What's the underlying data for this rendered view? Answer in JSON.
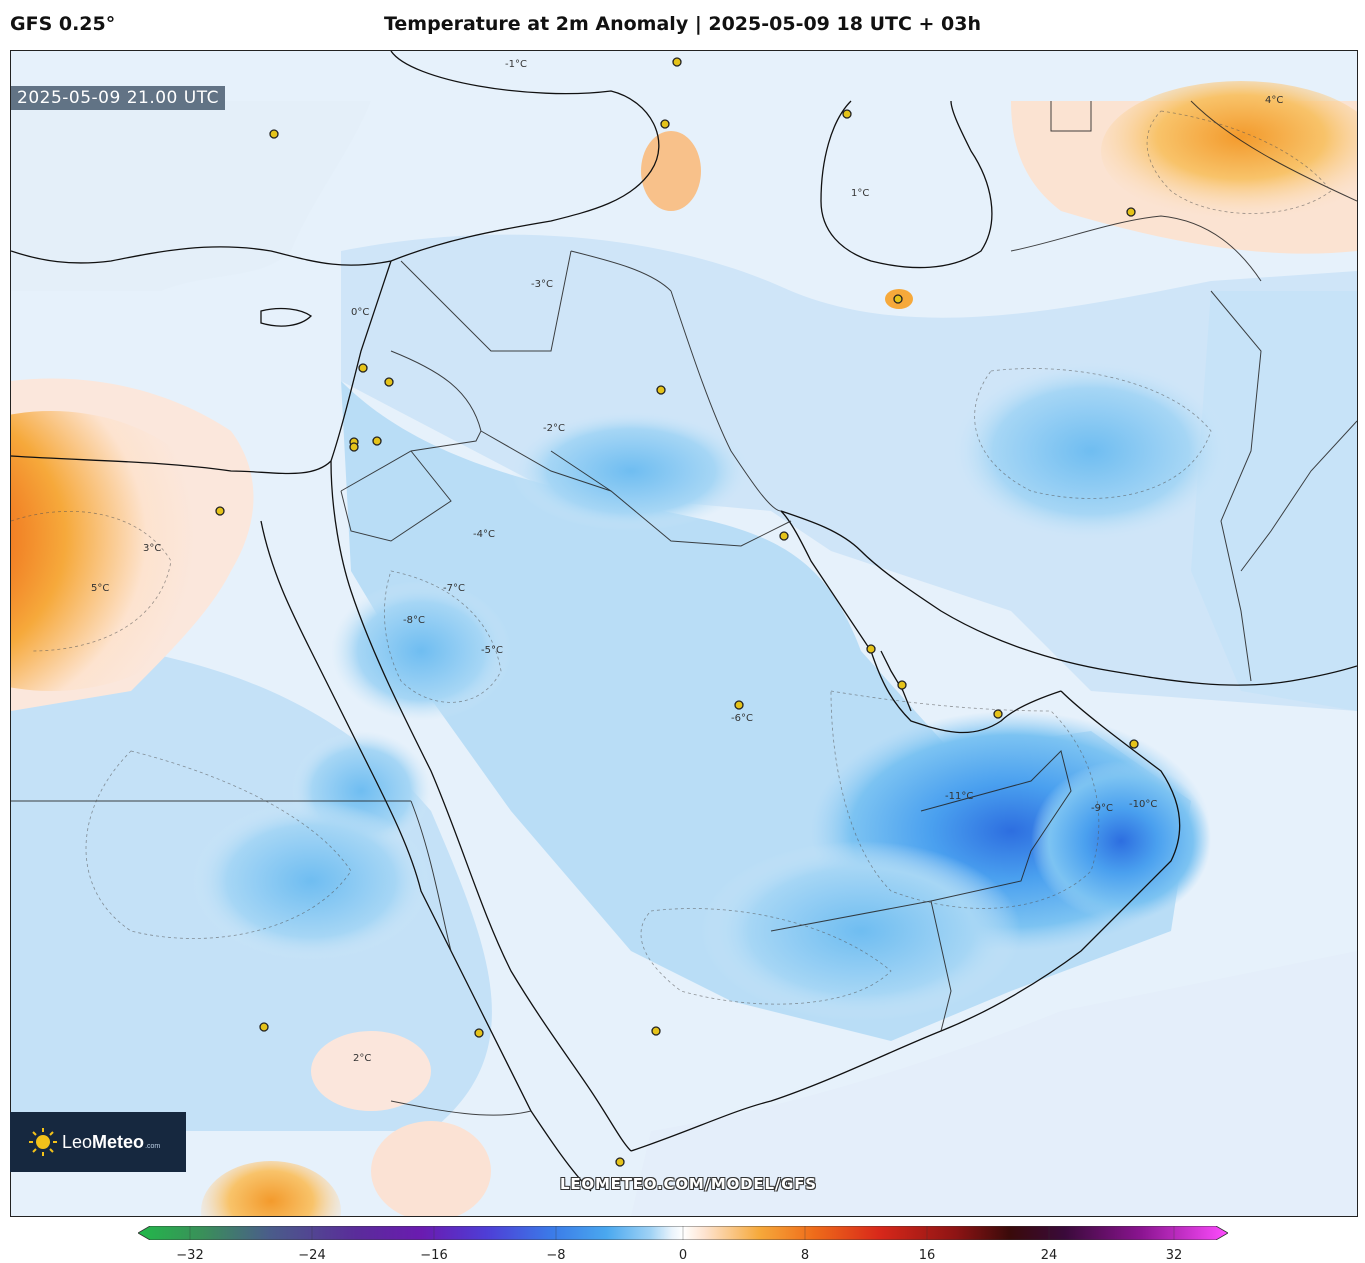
{
  "header": {
    "model": "GFS 0.25°",
    "title": "Temperature at 2m Anomaly | 2025-05-09 18 UTC + 03h"
  },
  "map": {
    "valid_time": "2025-05-09 21.00 UTC",
    "watermark": "LEOMETEO.COM/MODEL/GFS",
    "contour_labels": [
      {
        "text": "-1°C"
      },
      {
        "text": "0°C"
      },
      {
        "text": "1°C"
      },
      {
        "text": "-2°C"
      },
      {
        "text": "-3°C"
      },
      {
        "text": "-4°C"
      },
      {
        "text": "-5°C"
      },
      {
        "text": "-6°C"
      },
      {
        "text": "-7°C"
      },
      {
        "text": "-8°C"
      },
      {
        "text": "-9°C"
      },
      {
        "text": "-10°C"
      },
      {
        "text": "-11°C"
      },
      {
        "text": "2°C"
      },
      {
        "text": "3°C"
      },
      {
        "text": "4°C"
      },
      {
        "text": "5°C"
      }
    ]
  },
  "logo": {
    "name_light": "Leo",
    "name_bold": "Meteo",
    "domain": ".com"
  },
  "colorbar": {
    "ticks": [
      "−32",
      "−24",
      "−16",
      "−8",
      "0",
      "8",
      "16",
      "24",
      "32"
    ],
    "range": [
      -32,
      32
    ],
    "colors": [
      "#22b84a",
      "#3a8f5a",
      "#4a5d8a",
      "#5a2c9a",
      "#6a1bb0",
      "#4e3ed6",
      "#3b7be8",
      "#4aa8ef",
      "#9fd2f5",
      "#eaf4fc",
      "#ffffff",
      "#fde3cf",
      "#f6a93b",
      "#ef6c1a",
      "#d8281a",
      "#8e1414",
      "#3a0a0a",
      "#3a0a3a",
      "#8a1490",
      "#d81ad8",
      "#ff4cff"
    ]
  }
}
